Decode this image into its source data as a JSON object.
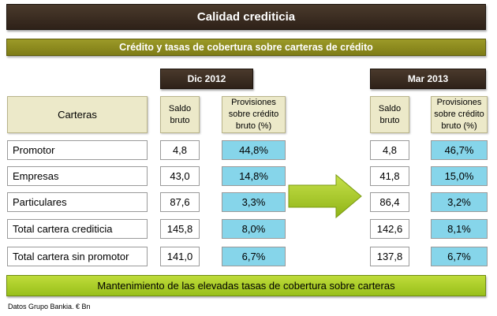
{
  "title": "Calidad crediticia",
  "subtitle": "Crédito y tasas de cobertura sobre carteras de crédito",
  "periods": [
    {
      "label": "Dic 2012",
      "col_saldo": "Saldo bruto",
      "col_prov": "Provisiones sobre crédito bruto (%)"
    },
    {
      "label": "Mar 2013",
      "col_saldo": "Saldo bruto",
      "col_prov": "Provisiones sobre crédito bruto (%)"
    }
  ],
  "carteras_header": "Carteras",
  "rows": [
    {
      "label": "Promotor",
      "dic_saldo": "4,8",
      "dic_prov": "44,8%",
      "mar_saldo": "4,8",
      "mar_prov": "46,7%"
    },
    {
      "label": "Empresas",
      "dic_saldo": "43,0",
      "dic_prov": "14,8%",
      "mar_saldo": "41,8",
      "mar_prov": "15,0%"
    },
    {
      "label": "Particulares",
      "dic_saldo": "87,6",
      "dic_prov": "3,3%",
      "mar_saldo": "86,4",
      "mar_prov": "3,2%"
    },
    {
      "label": "Total cartera crediticia",
      "dic_saldo": "145,8",
      "dic_prov": "8,0%",
      "mar_saldo": "142,6",
      "mar_prov": "8,1%"
    },
    {
      "label": "Total cartera sin promotor",
      "dic_saldo": "141,0",
      "dic_prov": "6,7%",
      "mar_saldo": "137,8",
      "mar_prov": "6,7%"
    }
  ],
  "footer_message": "Mantenimiento de las elevadas tasas de cobertura sobre carteras",
  "source_note": "Datos Grupo Bankia. € Bn",
  "colors": {
    "dark_brown": "#3a2b1f",
    "olive": "#8e8c1e",
    "beige": "#ece9c9",
    "light_blue": "#86d5ea",
    "lime": "#a9ce2a"
  }
}
